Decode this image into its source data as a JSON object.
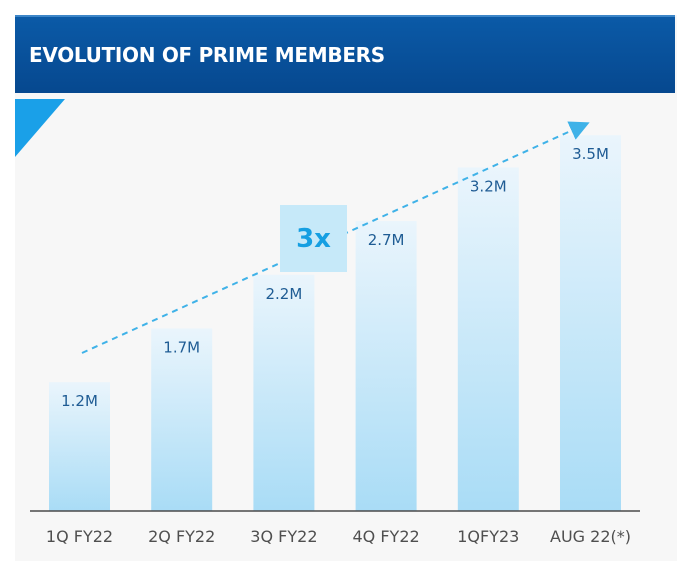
{
  "header": {
    "title": "EVOLUTION OF PRIME MEMBERS"
  },
  "callout": {
    "text": "3x"
  },
  "colors": {
    "header_bg": "#0b5aa7",
    "accent": "#1aa0e8",
    "bar_top": "#e8f4fb",
    "bar_bottom": "#a9dcf6",
    "label_text": "#1f5c94",
    "trend_line": "#3fb2e8"
  },
  "chart_data": {
    "type": "bar",
    "title": "EVOLUTION OF PRIME MEMBERS",
    "categories": [
      "1Q FY22",
      "2Q FY22",
      "3Q FY22",
      "4Q FY22",
      "1QFY23",
      "AUG 22(*)"
    ],
    "values": [
      1.2,
      1.7,
      2.2,
      2.7,
      3.2,
      3.5
    ],
    "value_labels": [
      "1.2M",
      "1.7M",
      "2.2M",
      "2.7M",
      "3.2M",
      "3.5M"
    ],
    "unit": "M",
    "ylim": [
      0,
      3.8
    ],
    "grid": false,
    "legend": "none",
    "annotations": [
      "3x"
    ],
    "trend_arrow": true
  }
}
